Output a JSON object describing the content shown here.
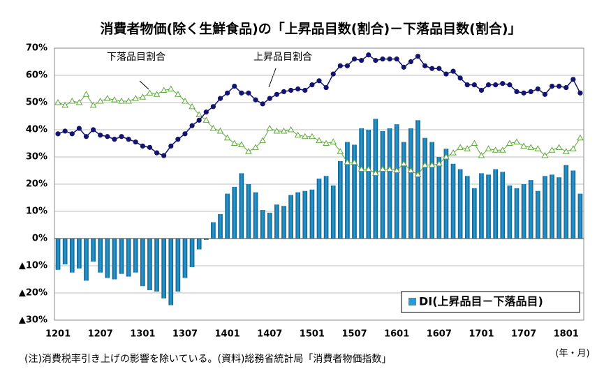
{
  "chart_data": {
    "type": "bar_line",
    "title": "消費者物価(除く生鮮食品)の「上昇品目数(割合)－下落品目数(割合)」",
    "note": "(注)消費税率引き上げの影響を除いている。(資料)総務省統計局「消費者物価指数」",
    "x_label": "(年・月)",
    "categories": [
      "1201",
      null,
      null,
      null,
      null,
      null,
      "1207",
      null,
      null,
      null,
      null,
      null,
      "1301",
      null,
      null,
      null,
      null,
      null,
      "1307",
      null,
      null,
      null,
      null,
      null,
      "1401",
      null,
      null,
      null,
      null,
      null,
      "1407",
      null,
      null,
      null,
      null,
      null,
      "1501",
      null,
      null,
      null,
      null,
      null,
      "1507",
      null,
      null,
      null,
      null,
      null,
      "1601",
      null,
      null,
      null,
      null,
      null,
      "1607",
      null,
      null,
      null,
      null,
      null,
      "1701",
      null,
      null,
      null,
      null,
      null,
      "1707",
      null,
      null,
      null,
      null,
      null,
      "1801",
      null,
      null
    ],
    "series": [
      {
        "name": "DI(上昇品目－下落品目)",
        "kind": "bar",
        "color": "#2a9ad2",
        "values": [
          -11.5,
          -9.5,
          -12.5,
          -11,
          -15.5,
          -8.5,
          -12.5,
          -14.5,
          -15,
          -13,
          -14,
          -12.5,
          -17.5,
          -19,
          -19.5,
          -22,
          -24.5,
          -19.5,
          -14.5,
          -10.5,
          -4,
          -0.5,
          6,
          9,
          16.5,
          19,
          24,
          20,
          17,
          10.5,
          9.5,
          12.5,
          12,
          16,
          17,
          17.5,
          18,
          22,
          23,
          19.5,
          28.5,
          35.5,
          34.5,
          40.5,
          40,
          44,
          39.5,
          40.5,
          42,
          35.5,
          40.5,
          43.5,
          37,
          35.5,
          30,
          33,
          27.5,
          25.5,
          23,
          18.5,
          24,
          23.5,
          25.5,
          24.5,
          19.5,
          18.5,
          20,
          21.5,
          17.5,
          23,
          23.5,
          22.5,
          27,
          25,
          16.5
        ]
      },
      {
        "name": "上昇品目割合",
        "kind": "line",
        "marker": "circle",
        "color": "#14146e",
        "values": [
          38.5,
          39.5,
          38.5,
          40.5,
          37.5,
          40,
          38,
          37.5,
          36.5,
          37.5,
          36.5,
          35.5,
          34,
          33.5,
          31.5,
          30.5,
          34,
          36.5,
          38.5,
          41.5,
          43.5,
          46.5,
          48.5,
          51.5,
          53.5,
          56,
          53.5,
          53.5,
          51,
          49.5,
          51.5,
          53,
          54,
          54.5,
          55,
          54.5,
          56.5,
          58,
          55.5,
          60.5,
          63.5,
          63.5,
          66,
          65.5,
          67.5,
          65.5,
          66,
          66,
          66,
          63,
          65,
          67,
          63.5,
          62.5,
          62.5,
          60.5,
          61.5,
          59,
          56.5,
          56.5,
          54.5,
          56.5,
          56.5,
          57,
          56.5,
          54,
          53.5,
          54,
          55,
          53,
          56,
          56,
          55.5,
          58.5,
          53.5
        ]
      },
      {
        "name": "下落品目割合",
        "kind": "line",
        "marker": "triangle",
        "color": "#5fa83c",
        "values": [
          50,
          49,
          50.5,
          50,
          53,
          49,
          50.5,
          51.5,
          51,
          50.5,
          50.5,
          51.5,
          52,
          53.5,
          53,
          54.5,
          55,
          53,
          50.5,
          48.5,
          45.5,
          43.5,
          40.5,
          39.5,
          37,
          35,
          34.5,
          32,
          33.5,
          36,
          40.5,
          39.5,
          39.5,
          40,
          38,
          37.5,
          37.5,
          36,
          35,
          35.5,
          32,
          28,
          28,
          25.5,
          25.5,
          24,
          25.5,
          25.5,
          25,
          27.5,
          25,
          23.5,
          27,
          27,
          27.5,
          30,
          31.5,
          33.5,
          33,
          35,
          30.5,
          33,
          32.5,
          32.5,
          35,
          35.5,
          34,
          33.5,
          33,
          30.5,
          32.5,
          33.5,
          32,
          33,
          37
        ]
      }
    ],
    "ylim": [
      -30,
      70
    ],
    "yticks": [
      {
        "value": -30,
        "label": "▲30%"
      },
      {
        "value": -20,
        "label": "▲20%"
      },
      {
        "value": -10,
        "label": "▲10%"
      },
      {
        "value": 0,
        "label": "0%"
      },
      {
        "value": 10,
        "label": "10%"
      },
      {
        "value": 20,
        "label": "20%"
      },
      {
        "value": 30,
        "label": "30%"
      },
      {
        "value": 40,
        "label": "40%"
      },
      {
        "value": 50,
        "label": "50%"
      },
      {
        "value": 60,
        "label": "60%"
      },
      {
        "value": 70,
        "label": "70%"
      }
    ],
    "grid": true
  }
}
